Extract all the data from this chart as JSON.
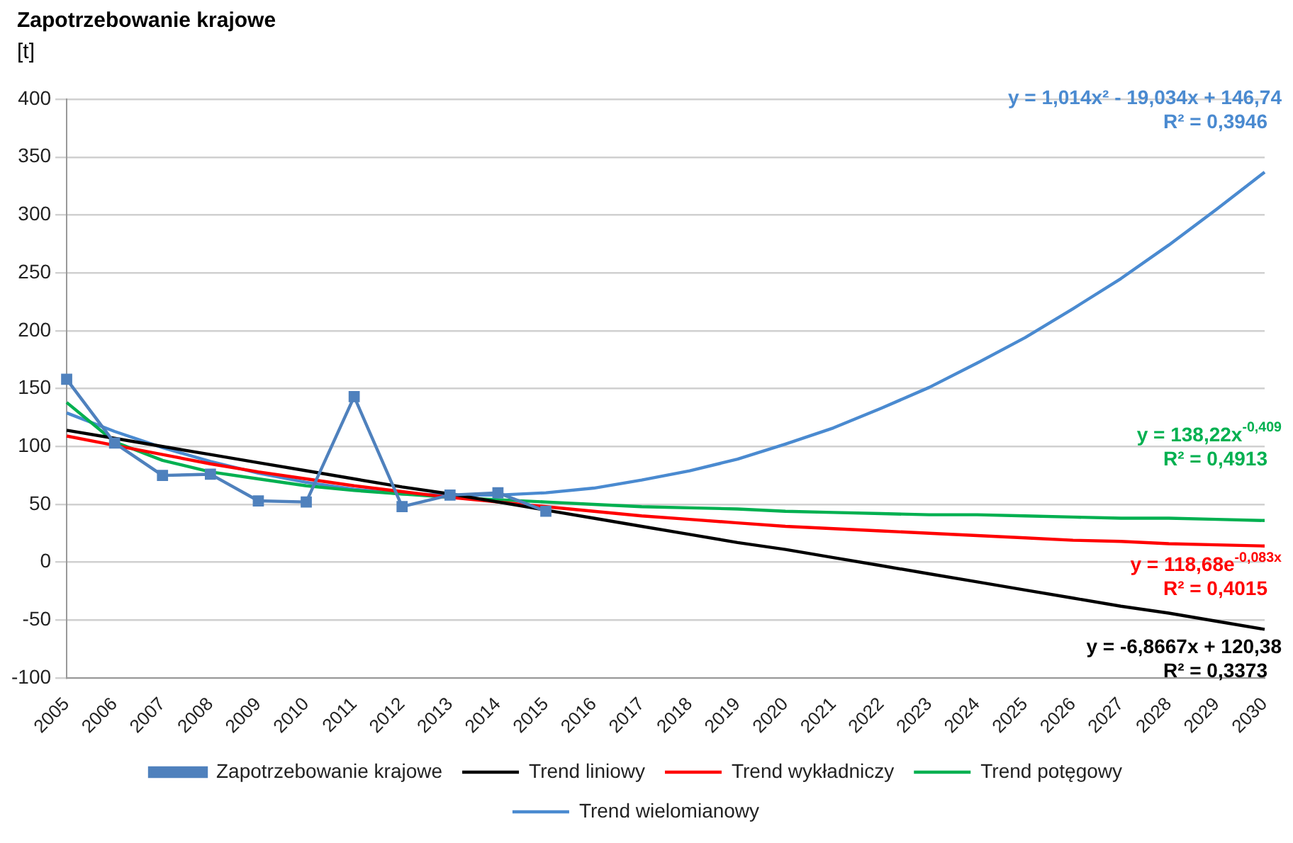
{
  "chart_data": {
    "type": "line",
    "title": "Zapotrzebowanie krajowe",
    "ylabel": "[t]",
    "categories": [
      "2005",
      "2006",
      "2007",
      "2008",
      "2009",
      "2010",
      "2011",
      "2012",
      "2013",
      "2014",
      "2015",
      "2016",
      "2017",
      "2018",
      "2019",
      "2020",
      "2021",
      "2022",
      "2023",
      "2024",
      "2025",
      "2026",
      "2027",
      "2028",
      "2029",
      "2030"
    ],
    "series": [
      {
        "name": "Zapotrzebowanie krajowe",
        "color": "#4f81bd",
        "marker": "square",
        "values": [
          158,
          103,
          75,
          76,
          53,
          52,
          143,
          48,
          58,
          60,
          44,
          null,
          null,
          null,
          null,
          null,
          null,
          null,
          null,
          null,
          null,
          null,
          null,
          null,
          null,
          null
        ]
      },
      {
        "name": "Trend liniowy",
        "color": "#000000",
        "marker": "none",
        "values": [
          114,
          107,
          100,
          93,
          86,
          79,
          72,
          65,
          59,
          52,
          45,
          38,
          31,
          24,
          17,
          11,
          4,
          -3,
          -10,
          -17,
          -24,
          -31,
          -38,
          -44,
          -51,
          -58
        ]
      },
      {
        "name": "Trend wykładniczy",
        "color": "#ff0000",
        "marker": "none",
        "values": [
          109,
          101,
          93,
          85,
          78,
          72,
          66,
          61,
          56,
          52,
          48,
          44,
          40,
          37,
          34,
          31,
          29,
          27,
          25,
          23,
          21,
          19,
          18,
          16,
          15,
          14
        ]
      },
      {
        "name": "Trend potęgowy",
        "color": "#00b050",
        "marker": "none",
        "values": [
          138,
          104,
          88,
          78,
          72,
          66,
          62,
          59,
          56,
          54,
          52,
          50,
          48,
          47,
          46,
          44,
          43,
          42,
          41,
          41,
          40,
          39,
          38,
          38,
          37,
          36
        ]
      },
      {
        "name": "Trend wielomianowy",
        "color": "#4a8ad0",
        "marker": "none",
        "values": [
          129,
          113,
          99,
          87,
          77,
          69,
          63,
          59,
          58,
          58,
          60,
          64,
          71,
          79,
          89,
          102,
          116,
          133,
          151,
          172,
          194,
          219,
          245,
          274,
          305,
          337
        ]
      }
    ],
    "annotations": [
      "y = -6,8667x + 120,38\nR² = 0,3373",
      "y = 118,68e$^{-0,083x}$\nR² = 0,4015",
      "y = 138,22x$^{-0,409}$\nR² = 0,4913",
      "y = 1,014x² - 19,034x + 146,74\nR² = 0,3946"
    ],
    "ylim": [
      -100,
      400
    ],
    "yticks": [
      -100,
      -50,
      0,
      50,
      100,
      150,
      200,
      250,
      300,
      350,
      400
    ],
    "grid": "y",
    "legend": "bottom"
  }
}
